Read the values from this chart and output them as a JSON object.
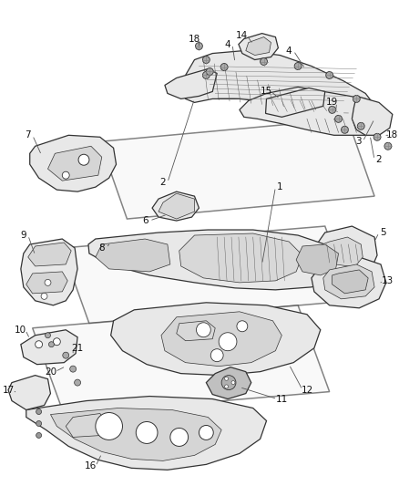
{
  "bg_color": "#ffffff",
  "line_color": "#333333",
  "label_color": "#111111",
  "lw_main": 0.9,
  "lw_thin": 0.5,
  "lw_panel": 1.1,
  "part_fill": "#e8e8e8",
  "panel_fill": "#f5f5f5",
  "figsize": [
    4.39,
    5.33
  ],
  "dpi": 100
}
